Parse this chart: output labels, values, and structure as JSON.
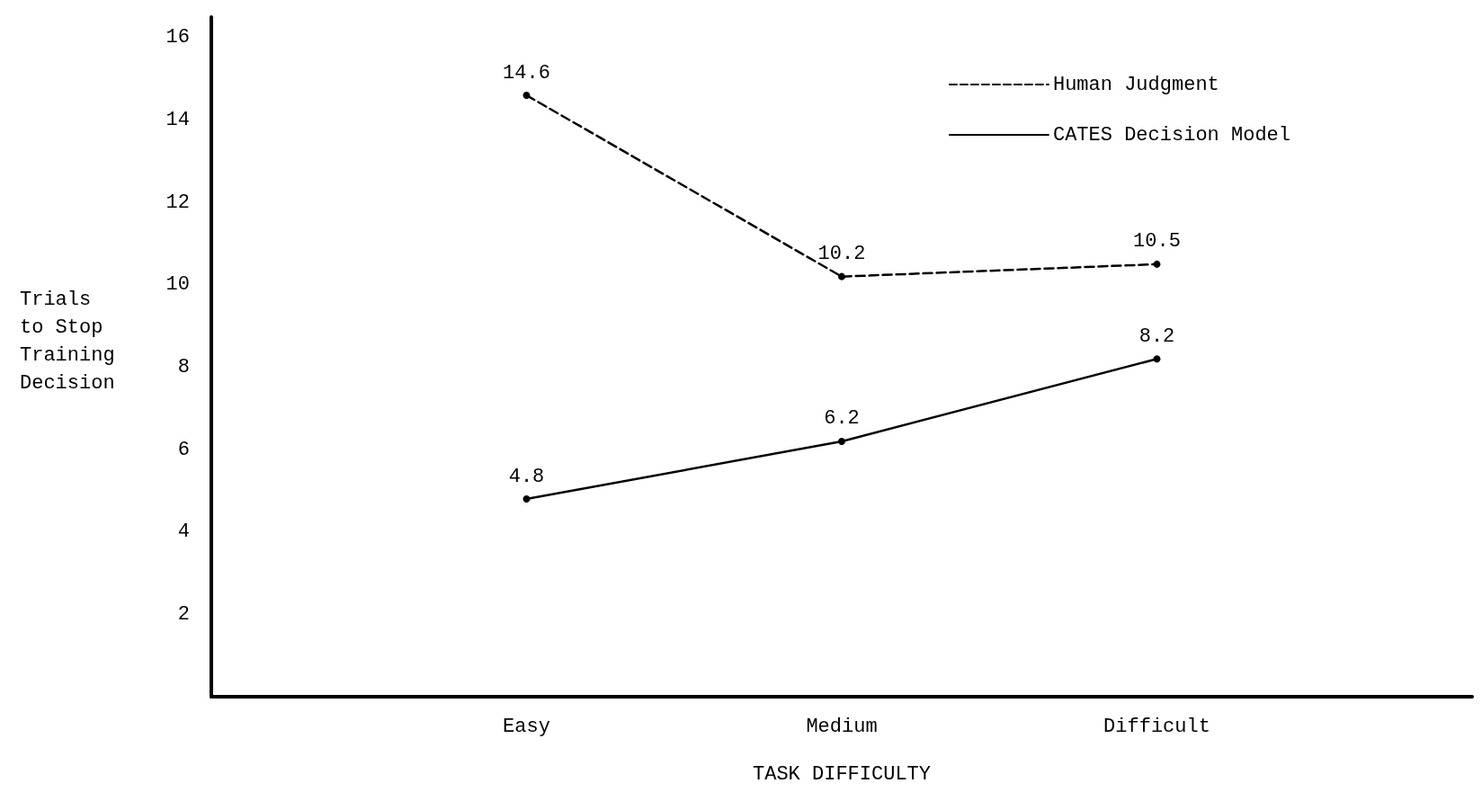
{
  "chart_data": {
    "type": "line",
    "xlabel": "TASK DIFFICULTY",
    "ylabel": "Trials\nto Stop\nTraining\nDecision",
    "categories": [
      null,
      "Easy",
      "Medium",
      "Difficult",
      null
    ],
    "series": [
      {
        "name": "Human Judgment",
        "color": "#000000",
        "line_style": "dashed",
        "values": [
          null,
          14.6,
          10.2,
          10.5,
          null
        ]
      },
      {
        "name": "CATES Decision Model",
        "color": "#000000",
        "line_style": "solid",
        "values": [
          null,
          4.8,
          6.2,
          8.2,
          null
        ]
      }
    ],
    "ylim": [
      0,
      16.5
    ],
    "yticks": [
      2,
      4,
      6,
      8,
      10,
      12,
      14,
      16
    ],
    "grid": false,
    "legend": "top right",
    "marker": "circle",
    "data_labels": true
  }
}
